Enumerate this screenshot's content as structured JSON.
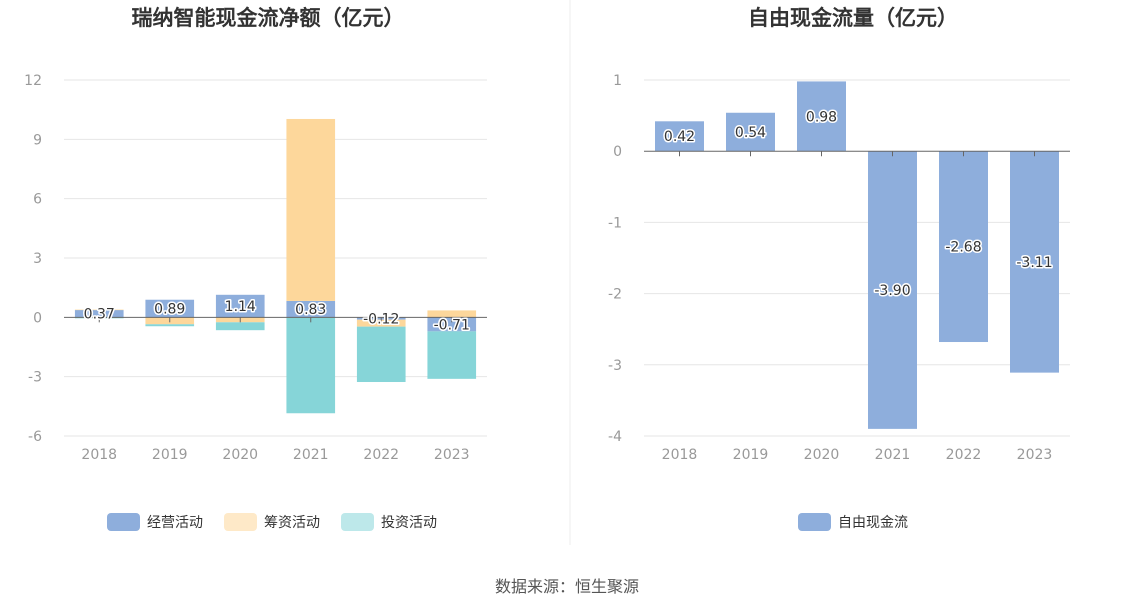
{
  "source_text": "数据来源：恒生聚源",
  "colors": {
    "operating": "#8eaedc",
    "financing": "#fdd79b",
    "investing": "#86d5d8",
    "free_cash_flow": "#8eaedc",
    "grid": "#e6e6e6",
    "axis": "#666666",
    "divider": "#eeeeee"
  },
  "chart_data": [
    {
      "type": "bar",
      "stacked": true,
      "title": "瑞纳智能现金流净额（亿元）",
      "categories": [
        "2018",
        "2019",
        "2020",
        "2021",
        "2022",
        "2023"
      ],
      "ylim": [
        -6,
        12
      ],
      "yticks": [
        12,
        9,
        6,
        3,
        0,
        -3,
        -6
      ],
      "grid": true,
      "legend_position": "bottom",
      "series": [
        {
          "name": "经营活动",
          "color": "#8eaedc",
          "values": [
            0.37,
            0.89,
            1.14,
            0.83,
            -0.12,
            -0.71
          ]
        },
        {
          "name": "筹资活动",
          "color": "#fdd79b",
          "values": [
            0.02,
            -0.35,
            -0.25,
            9.2,
            -0.35,
            0.35
          ]
        },
        {
          "name": "投资活动",
          "color": "#86d5d8",
          "values": [
            -0.05,
            -0.1,
            -0.4,
            -4.85,
            -2.8,
            -2.4
          ]
        }
      ],
      "data_labels": [
        "0.37",
        "0.89",
        "1.14",
        "0.83",
        "-0.12",
        "-0.71"
      ]
    },
    {
      "type": "bar",
      "title": "自由现金流量（亿元）",
      "categories": [
        "2018",
        "2019",
        "2020",
        "2021",
        "2022",
        "2023"
      ],
      "ylim": [
        -4,
        1
      ],
      "yticks": [
        1,
        0,
        -1,
        -2,
        -3,
        -4
      ],
      "grid": true,
      "legend_position": "bottom",
      "series": [
        {
          "name": "自由现金流",
          "color": "#8eaedc",
          "values": [
            0.42,
            0.54,
            0.98,
            -3.9,
            -2.68,
            -3.11
          ]
        }
      ],
      "data_labels": [
        "0.42",
        "0.54",
        "0.98",
        "-3.90",
        "-2.68",
        "-3.11"
      ]
    }
  ]
}
